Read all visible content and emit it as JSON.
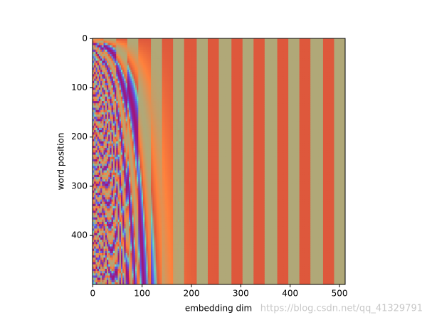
{
  "chart_data": {
    "type": "heatmap",
    "xlabel": "embedding dim",
    "ylabel": "word position",
    "xlim": [
      -0.5,
      511.5
    ],
    "ylim": [
      499.5,
      -0.5
    ],
    "xticks": [
      0,
      100,
      200,
      300,
      400,
      500
    ],
    "yticks": [
      0,
      100,
      200,
      300,
      400
    ],
    "watermark": "https://blog.csdn.net/qq_41329791"
  }
}
